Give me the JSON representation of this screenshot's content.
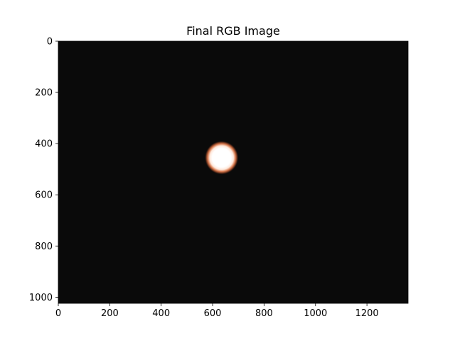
{
  "chart_data": {
    "type": "heatmap",
    "title": "Final RGB Image",
    "xlabel": "",
    "ylabel": "",
    "xlim": [
      0,
      1360
    ],
    "ylim": [
      1024,
      0
    ],
    "x_ticks": [
      0,
      200,
      400,
      600,
      800,
      1000,
      1200
    ],
    "y_ticks": [
      0,
      200,
      400,
      600,
      800,
      1000
    ],
    "grid": false,
    "background_color": "#0a0a0a",
    "bright_spot": {
      "center": [
        635,
        455
      ],
      "radius": 30,
      "core_color": "#ffffff",
      "rim_color": "#c8643c"
    }
  }
}
